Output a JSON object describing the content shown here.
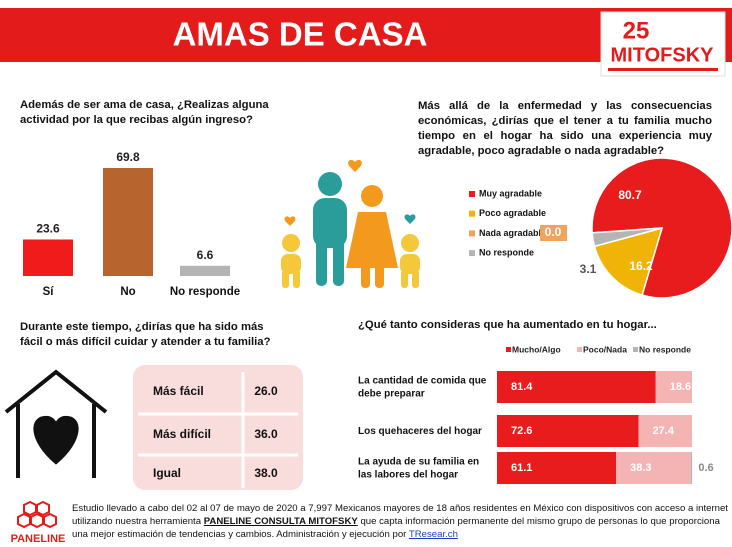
{
  "header": {
    "title": "AMAS DE CASA",
    "logo_number": "25",
    "logo_name": "MITOFSKY"
  },
  "chart_data": [
    {
      "type": "bar",
      "title": "Además de ser ama de casa, ¿Realizas alguna actividad por la que recibas algún ingreso?",
      "categories": [
        "Sí",
        "No",
        "No responde"
      ],
      "values": [
        23.6,
        69.8,
        6.6
      ],
      "colors": [
        "#f21b1b",
        "#b8642f",
        "#b4b4b4"
      ]
    },
    {
      "type": "pie",
      "title": "Más allá de la enfermedad y las consecuencias económicas, ¿dirías que el tener a tu familia mucho tiempo en el hogar ha sido una experiencia muy agradable, poco agradable o nada agradable?",
      "categories": [
        "Muy agradable",
        "Poco agradable",
        "Nada agradable",
        "No responde"
      ],
      "values": [
        80.7,
        16.2,
        0.0,
        3.1
      ],
      "value_labels": [
        "80.7",
        "16.2",
        "0.0",
        "3.1"
      ],
      "colors": [
        "#e81c1c",
        "#f0b409",
        "#f2a35a",
        "#b4b4b4"
      ]
    },
    {
      "type": "bar",
      "horizontal": true,
      "stacked": true,
      "title": "¿Qué tanto consideras que ha aumentado en tu hogar...",
      "categories": [
        "La cantidad de comida que debe preparar",
        "Los quehaceres del hogar",
        "La ayuda de su familia en las labores del hogar"
      ],
      "series": [
        {
          "name": "Mucho/Algo",
          "color": "#e81c1c",
          "values": [
            81.4,
            72.6,
            61.1
          ]
        },
        {
          "name": "Poco/Nada",
          "color": "#f4b4b4",
          "values": [
            18.6,
            27.4,
            38.3
          ]
        },
        {
          "name": "No responde",
          "color": "#b4b4b4",
          "values": [
            null,
            null,
            0.6
          ]
        }
      ]
    }
  ],
  "table": {
    "question": "Durante este tiempo, ¿dirías que ha sido más fácil o más difícil cuidar y atender a tu familia?",
    "rows": [
      [
        "Más fácil",
        "26.0"
      ],
      [
        "Más difícil",
        "36.0"
      ],
      [
        "Igual",
        "38.0"
      ]
    ]
  },
  "footer": {
    "logo": "PANELINE",
    "text": [
      "Estudio llevado a cabo del 02 al 07 de mayo de 2020 a 7,997 Mexicanos mayores de 18 años residentes en México con dispositivos con acceso a internet utilizando nuestra herramienta ",
      "PANELINE CONSULTA MITOFSKY",
      " que capta información permanente del mismo grupo de personas lo que proporciona una mejor estimación de tendencias y cambios. Administración y ejecución por ",
      "TResear.ch"
    ]
  }
}
